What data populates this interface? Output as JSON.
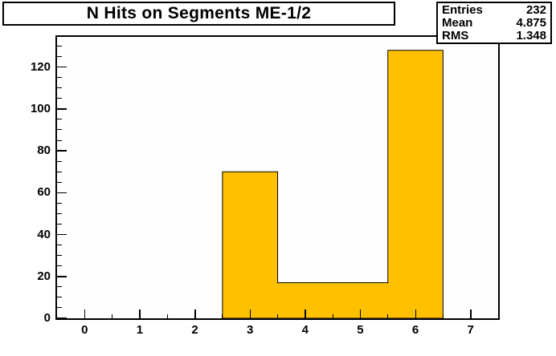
{
  "title": "N Hits on Segments ME-1/2",
  "stats": {
    "rows": [
      {
        "label": "Entries",
        "value": "232"
      },
      {
        "label": "Mean",
        "value": "4.875"
      },
      {
        "label": "RMS",
        "value": "1.348"
      }
    ]
  },
  "chart_data": {
    "type": "bar",
    "title": "N Hits on Segments ME-1/2",
    "xlabel": "",
    "ylabel": "",
    "bin_centers": [
      3,
      4,
      5,
      6
    ],
    "bin_width": 1,
    "values": [
      70,
      17,
      17,
      128
    ],
    "xlim": [
      -0.5,
      7.5
    ],
    "ylim": [
      0,
      134.4
    ],
    "x_major_ticks": [
      0,
      1,
      2,
      3,
      4,
      5,
      6,
      7
    ],
    "x_minor_step": 0.5,
    "y_major_ticks": [
      0,
      20,
      40,
      60,
      80,
      100,
      120
    ],
    "y_minor_step": 5,
    "grid": false,
    "legend": false,
    "bar_color": "#FFC000",
    "bar_border_color": "#000000",
    "frame_color": "#000000",
    "background_color": "#FFFFFF"
  }
}
